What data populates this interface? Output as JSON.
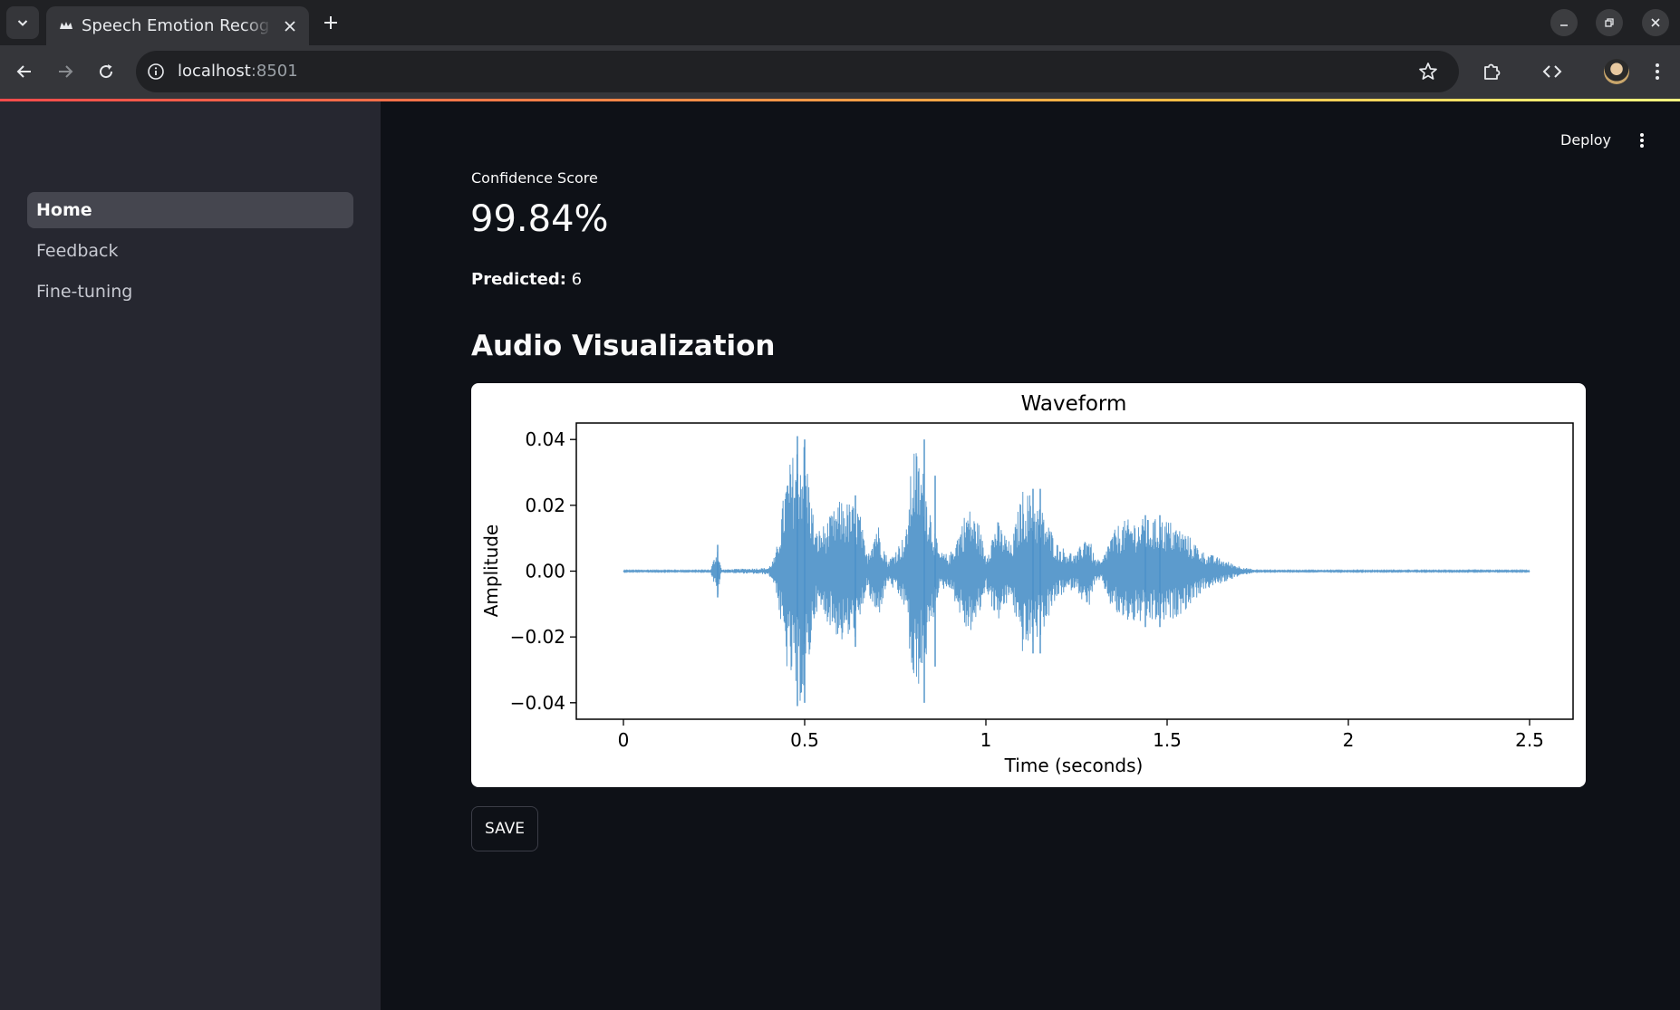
{
  "browser": {
    "tab_title": "Speech Emotion Recognition",
    "url_host": "localhost",
    "url_port": ":8501",
    "icons": {
      "tab_list": "chevron-down-icon",
      "favicon": "streamlit-crown-icon",
      "close": "close-icon",
      "new_tab": "plus-icon",
      "back": "arrow-left-icon",
      "forward": "arrow-right-icon",
      "reload": "reload-icon",
      "site_info": "info-icon",
      "bookmark": "star-icon",
      "extensions": "puzzle-icon",
      "devtools": "code-icon",
      "menu": "kebab-icon"
    }
  },
  "sidebar": {
    "items": [
      {
        "label": "Home",
        "active": true
      },
      {
        "label": "Feedback",
        "active": false
      },
      {
        "label": "Fine-tuning",
        "active": false
      }
    ]
  },
  "header": {
    "deploy_label": "Deploy"
  },
  "main": {
    "metric_label": "Confidence Score",
    "metric_value": "99.84%",
    "predicted_label": "Predicted:",
    "predicted_value": "6",
    "section_title": "Audio Visualization",
    "save_label": "SAVE"
  },
  "colors": {
    "app_background": "#0e1117",
    "sidebar_background": "#262730",
    "waveform": "#4a90c8",
    "accent_gradient_start": "#ff4b4b",
    "accent_gradient_end": "#fffd80"
  },
  "chart_data": {
    "type": "line",
    "title": "Waveform",
    "xlabel": "Time (seconds)",
    "ylabel": "Amplitude",
    "xlim": [
      -0.13,
      2.62
    ],
    "ylim": [
      -0.045,
      0.045
    ],
    "xticks": [
      0,
      0.5,
      1,
      1.5,
      2,
      2.5
    ],
    "xtick_labels": [
      "0",
      "0.5",
      "1",
      "1.5",
      "2",
      "2.5"
    ],
    "yticks": [
      0.04,
      0.02,
      0.0,
      -0.02,
      -0.04
    ],
    "ytick_labels": [
      "0.04",
      "0.02",
      "0.00",
      "−0.02",
      "−0.04"
    ],
    "grid": false,
    "legend": "none",
    "duration": 2.5,
    "envelope": {
      "t": [
        0,
        0.24,
        0.25,
        0.26,
        0.27,
        0.4,
        0.42,
        0.45,
        0.48,
        0.5,
        0.53,
        0.56,
        0.6,
        0.65,
        0.67,
        0.7,
        0.73,
        0.78,
        0.8,
        0.83,
        0.87,
        0.9,
        0.95,
        0.98,
        1.0,
        1.03,
        1.07,
        1.1,
        1.12,
        1.15,
        1.2,
        1.25,
        1.28,
        1.3,
        1.32,
        1.34,
        1.37,
        1.4,
        1.45,
        1.5,
        1.55,
        1.6,
        1.7,
        1.75,
        2.5
      ],
      "amp": [
        0.0002,
        0.0002,
        0.004,
        0.008,
        0.0005,
        0.001,
        0.005,
        0.03,
        0.04,
        0.04,
        0.012,
        0.015,
        0.022,
        0.02,
        0.005,
        0.016,
        0.003,
        0.012,
        0.04,
        0.03,
        0.006,
        0.005,
        0.02,
        0.015,
        0.005,
        0.016,
        0.008,
        0.025,
        0.024,
        0.02,
        0.008,
        0.005,
        0.013,
        0.004,
        0.003,
        0.01,
        0.015,
        0.016,
        0.016,
        0.016,
        0.012,
        0.006,
        0.0015,
        0.0002,
        0.0002
      ]
    },
    "peaks": [
      {
        "t": 0.26,
        "amp": 0.008
      },
      {
        "t": 0.48,
        "amp": 0.041
      },
      {
        "t": 0.5,
        "amp": 0.04
      },
      {
        "t": 0.64,
        "amp": 0.023
      },
      {
        "t": 0.83,
        "amp": 0.04
      },
      {
        "t": 0.86,
        "amp": 0.029
      },
      {
        "t": 1.13,
        "amp": 0.025
      },
      {
        "t": 1.15,
        "amp": 0.025
      },
      {
        "t": 1.44,
        "amp": 0.017
      },
      {
        "t": 1.48,
        "amp": 0.017
      }
    ]
  }
}
